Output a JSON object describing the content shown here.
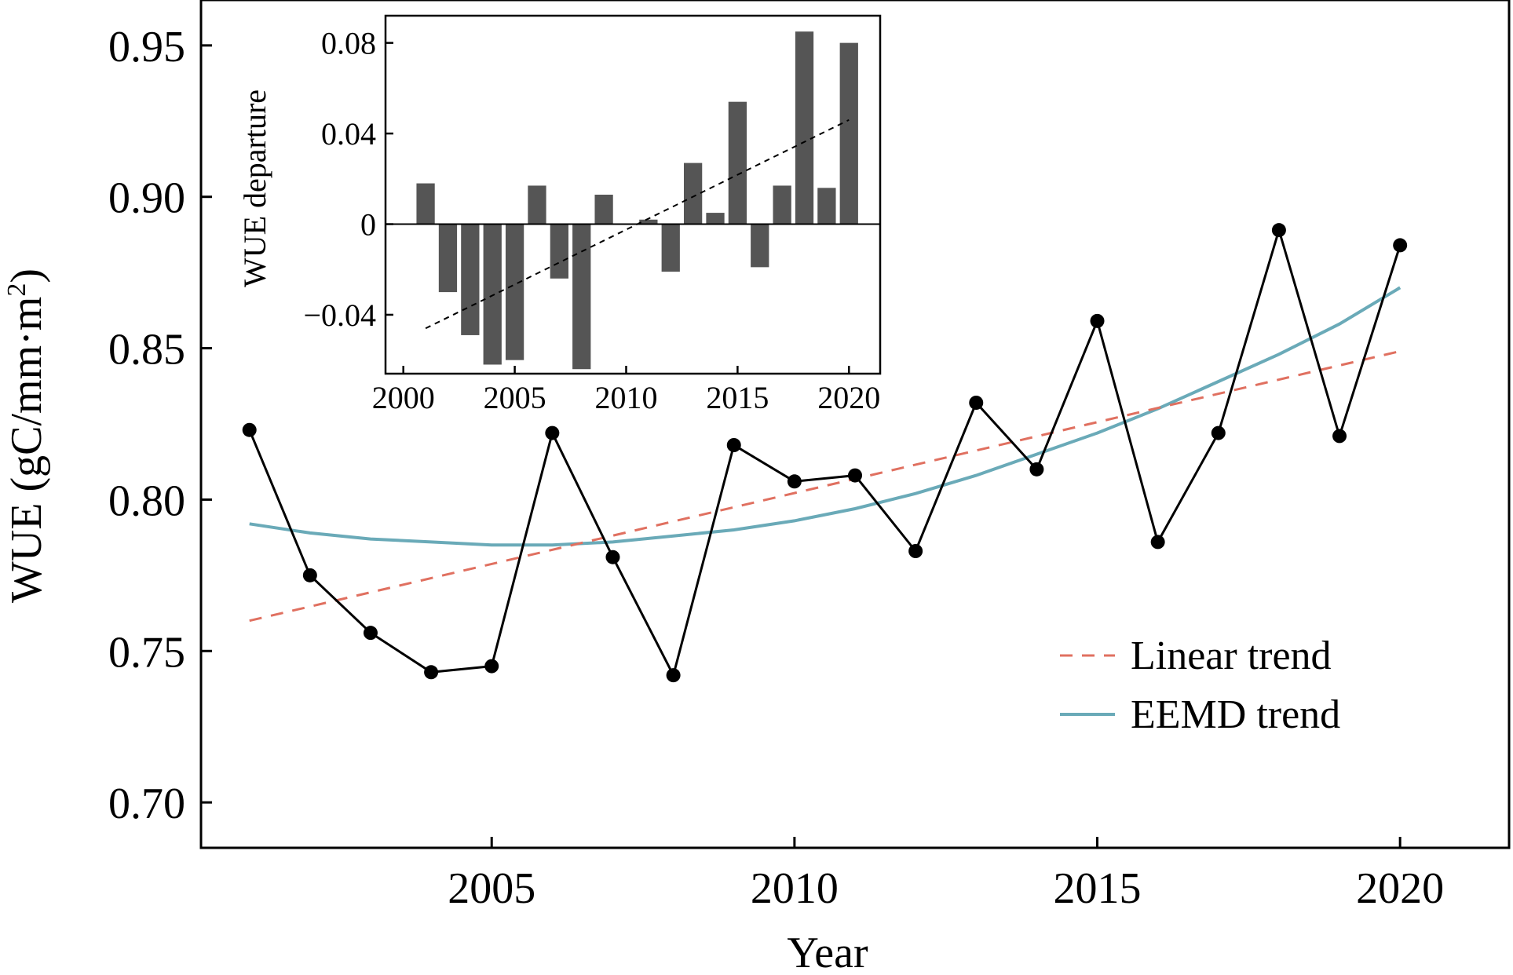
{
  "chart_data": [
    {
      "type": "line",
      "xlabel": "Year",
      "ylabel": "WUE (gC/mm·m",
      "ylabel_sup": "2",
      "ylabel_close": ")",
      "xlim": [
        2000.2,
        2021.8
      ],
      "ylim": [
        0.685,
        0.965
      ],
      "xticks": [
        2005,
        2010,
        2015,
        2020
      ],
      "xtick_labels": [
        "2005",
        "2010",
        "2015",
        "2020"
      ],
      "yticks": [
        0.7,
        0.75,
        0.8,
        0.85,
        0.9,
        0.95
      ],
      "ytick_labels": [
        "0.70",
        "0.75",
        "0.80",
        "0.85",
        "0.90",
        "0.95"
      ],
      "grid": false,
      "legend_position": "bottom-right",
      "legend": {
        "linear_label": "Linear trend",
        "eemd_label": "EEMD trend"
      },
      "colors": {
        "observed": "#000000",
        "linear": "#e07060",
        "eemd": "#6aaab8"
      },
      "series": [
        {
          "key": "observed",
          "x": [
            2001,
            2002,
            2003,
            2004,
            2005,
            2006,
            2007,
            2008,
            2009,
            2010,
            2011,
            2012,
            2013,
            2014,
            2015,
            2016,
            2017,
            2018,
            2019,
            2020
          ],
          "values": [
            0.823,
            0.775,
            0.756,
            0.743,
            0.745,
            0.822,
            0.781,
            0.742,
            0.818,
            0.806,
            0.808,
            0.783,
            0.832,
            0.81,
            0.859,
            0.786,
            0.822,
            0.889,
            0.821,
            0.884
          ]
        },
        {
          "name": "Linear trend",
          "x": [
            2001,
            2020
          ],
          "values": [
            0.76,
            0.849
          ]
        },
        {
          "name": "EEMD trend",
          "x": [
            2001,
            2002,
            2003,
            2004,
            2005,
            2006,
            2007,
            2008,
            2009,
            2010,
            2011,
            2012,
            2013,
            2014,
            2015,
            2016,
            2017,
            2018,
            2019,
            2020
          ],
          "values": [
            0.792,
            0.789,
            0.787,
            0.786,
            0.785,
            0.785,
            0.786,
            0.788,
            0.79,
            0.793,
            0.797,
            0.802,
            0.808,
            0.815,
            0.822,
            0.83,
            0.839,
            0.848,
            0.858,
            0.87
          ]
        }
      ]
    },
    {
      "type": "bar",
      "inset": true,
      "ylabel": "WUE departure",
      "xlim": [
        1999.2,
        2021.4
      ],
      "ylim": [
        -0.066,
        0.092
      ],
      "xticks": [
        2000,
        2005,
        2010,
        2015,
        2020
      ],
      "xtick_labels": [
        "2000",
        "2005",
        "2010",
        "2015",
        "2020"
      ],
      "yticks": [
        -0.04,
        0,
        0.04,
        0.08
      ],
      "ytick_labels": [
        "−0.04",
        "0",
        "0.04",
        "0.08"
      ],
      "bar_color": "#555555",
      "categories": [
        2001,
        2002,
        2003,
        2004,
        2005,
        2006,
        2007,
        2008,
        2009,
        2010,
        2011,
        2012,
        2013,
        2014,
        2015,
        2016,
        2017,
        2018,
        2019,
        2020
      ],
      "values": [
        0.018,
        -0.03,
        -0.049,
        -0.062,
        -0.06,
        0.017,
        -0.024,
        -0.064,
        0.013,
        0.0,
        0.002,
        -0.021,
        0.027,
        0.005,
        0.054,
        -0.019,
        0.017,
        0.085,
        0.016,
        0.08
      ],
      "trend": {
        "x": [
          2001,
          2020
        ],
        "values": [
          -0.046,
          0.046
        ]
      }
    }
  ]
}
